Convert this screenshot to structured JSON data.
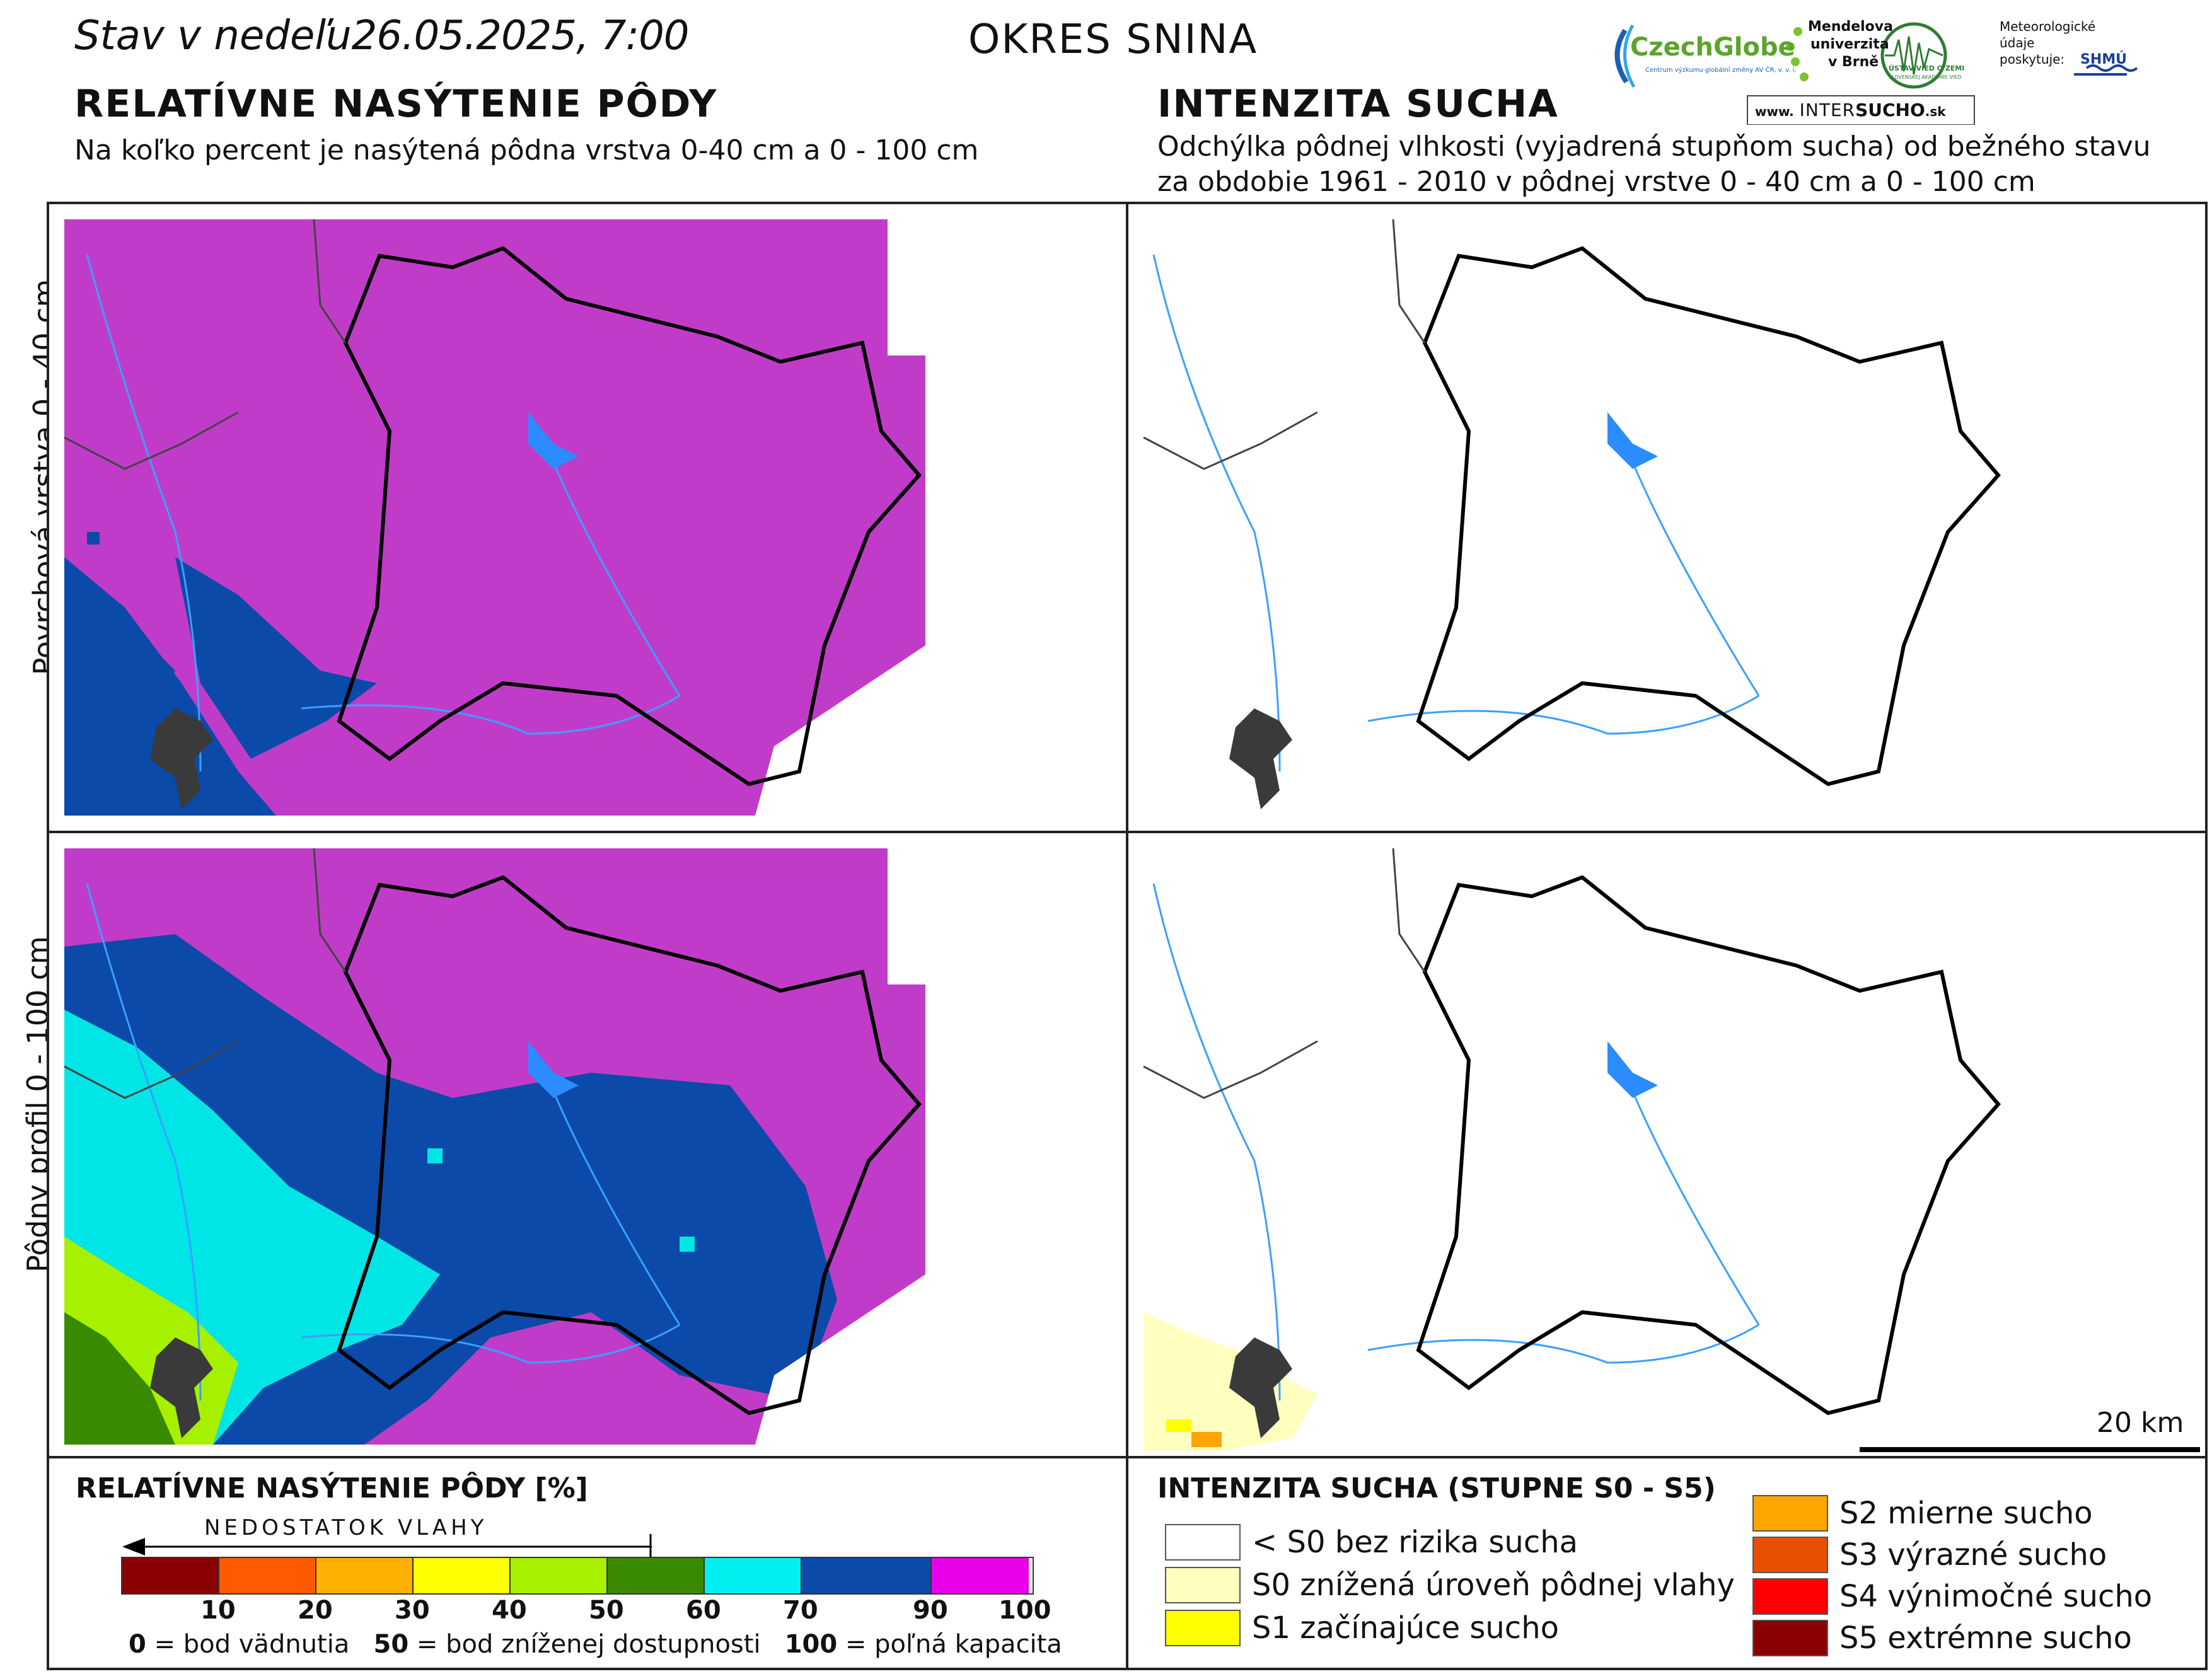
{
  "header": {
    "status_prefix": "Stav v nedeľu",
    "status_date": "26.05.2025, 7:00",
    "district": "OKRES  SNINA"
  },
  "logos": {
    "czechglobe": "CzechGlobe",
    "czechglobe_sub": "Centrum výzkumu globální změny AV ČR, v. v. i.",
    "mendel": [
      "Mendelova",
      "univerzita",
      "v Brně"
    ],
    "uvoz": "ÚSTAV VIED O ZEMI",
    "uvoz_sub": "SLOVENSKEJ AKADÉMIE VIED",
    "meteo": [
      "Meteorologické",
      "údaje",
      "poskytuje:"
    ],
    "shmu": "SHMÚ",
    "intersucho_pre": "www.",
    "intersucho_a": "INTER",
    "intersucho_b": "SUCHO",
    "intersucho_c": ".sk"
  },
  "left": {
    "title": "RELATÍVNE NASÝTENIE PÔDY",
    "subtitle": "Na koľko percent je nasýtená pôdna vrstva 0-40 cm a 0 - 100 cm"
  },
  "right": {
    "title": "INTENZITA SUCHA",
    "subtitle_1": "Odchýlka pôdnej vlhkosti (vyjadrená stupňom sucha) od bežného stavu",
    "subtitle_2": "za obdobie 1961 - 2010 v pôdnej vrstve 0 - 40 cm a 0 - 100 cm"
  },
  "rows": {
    "top": "Povrchová vrstva 0 - 40 cm",
    "bottom": "Pôdny profil 0 - 100 cm"
  },
  "scalebar": "20 km",
  "legend_left": {
    "title": "RELATÍVNE NASÝTENIE PÔDY [%]",
    "arrow_label": "NEDOSTATOK VLAHY",
    "colors": [
      "#8b0000",
      "#ff5a00",
      "#ffb000",
      "#ffff00",
      "#a6f000",
      "#3a8a00",
      "#00f0f0",
      "#0b4aa8",
      "#e800e8"
    ],
    "ticks": [
      "10",
      "20",
      "30",
      "40",
      "50",
      "60",
      "70",
      "90",
      "100"
    ],
    "note_0": "0",
    "note_0_text": "= bod vädnutia",
    "note_50": "50",
    "note_50_text": "= bod zníženej dostupnosti",
    "note_100": "100",
    "note_100_text": "= poľná kapacita"
  },
  "legend_right": {
    "title": "INTENZITA SUCHA (STUPNE S0 - S5)",
    "items": [
      {
        "color": "#ffffff",
        "label": "< S0 bez rizika sucha"
      },
      {
        "color": "#ffffc0",
        "label": "S0 znížená úroveň pôdnej vlahy"
      },
      {
        "color": "#ffff00",
        "label": "S1 začínajúce sucho"
      },
      {
        "color": "#ffa500",
        "label": "S2 mierne sucho"
      },
      {
        "color": "#e85000",
        "label": "S3 výrazné sucho"
      },
      {
        "color": "#ff0000",
        "label": "S4 výnimočné sucho"
      },
      {
        "color": "#8b0000",
        "label": "S5 extrémne sucho"
      }
    ]
  }
}
